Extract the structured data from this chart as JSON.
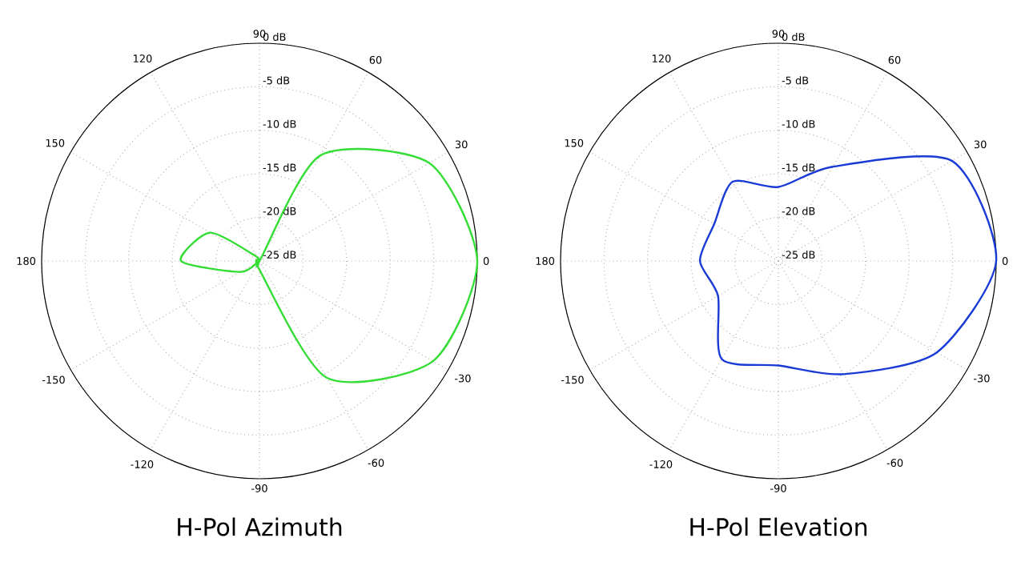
{
  "chart_data": [
    {
      "type": "radar",
      "title": "H-Pol Azimuth",
      "categories": [
        "90",
        "60",
        "30",
        "0",
        "-30",
        "-60",
        "-90",
        "-120",
        "-150",
        "180",
        "150",
        "120"
      ],
      "series": [
        {
          "color": "#33dd33",
          "values": [
            -25,
            -11,
            -2.5,
            0,
            -2,
            -9.5,
            -24,
            -25,
            -22.5,
            -16,
            -18.5,
            -24.5
          ]
        }
      ],
      "ylim": [
        -25,
        0
      ],
      "yticks": [
        {
          "value": -25,
          "label": "-25 dB"
        },
        {
          "value": -20,
          "label": "-20 dB"
        },
        {
          "value": -15,
          "label": "-15 dB"
        },
        {
          "value": -10,
          "label": "-10 dB"
        },
        {
          "value": -5,
          "label": "-5 dB"
        },
        {
          "value": 0,
          "label": "0 dB"
        }
      ],
      "grid": true
    },
    {
      "type": "radar",
      "title": "H-Pol Elevation",
      "categories": [
        "90",
        "60",
        "30",
        "0",
        "-30",
        "-60",
        "-90",
        "-120",
        "-150",
        "180",
        "150",
        "120"
      ],
      "series": [
        {
          "color": "#1a3ad6",
          "values": [
            -16.5,
            -12.5,
            -2,
            0,
            -4,
            -10,
            -13,
            -12,
            -17,
            -16,
            -16.5,
            -14.5
          ]
        }
      ],
      "ylim": [
        -25,
        0
      ],
      "yticks": [
        {
          "value": -25,
          "label": "-25 dB"
        },
        {
          "value": -20,
          "label": "-20 dB"
        },
        {
          "value": -15,
          "label": "-15 dB"
        },
        {
          "value": -10,
          "label": "-10 dB"
        },
        {
          "value": -5,
          "label": "-5 dB"
        },
        {
          "value": 0,
          "label": "0 dB"
        }
      ],
      "grid": true
    }
  ]
}
